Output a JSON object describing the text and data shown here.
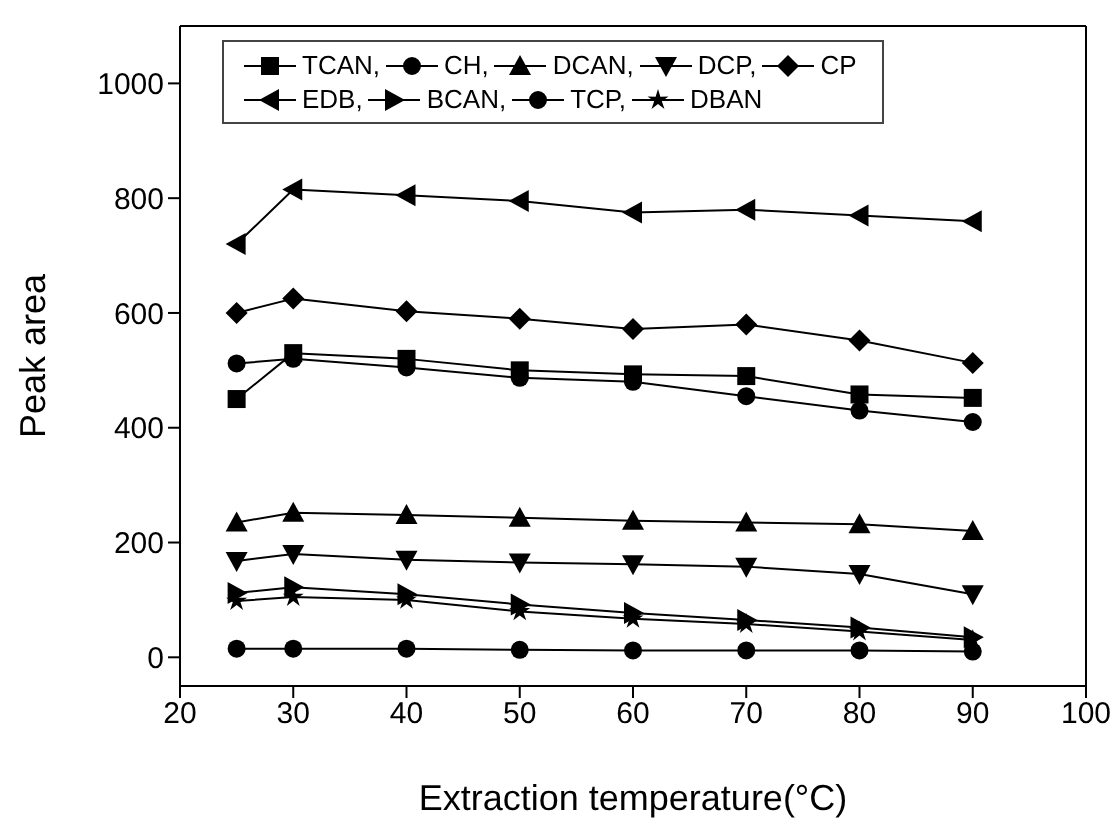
{
  "chart_data": {
    "type": "line",
    "xlabel": "Extraction temperature(°C)",
    "ylabel": "Peak area",
    "x": [
      25,
      30,
      40,
      50,
      60,
      70,
      80,
      90
    ],
    "xlim": [
      20,
      100
    ],
    "xticks": [
      20,
      30,
      40,
      50,
      60,
      70,
      80,
      90,
      100
    ],
    "ylim": [
      -50,
      1100
    ],
    "yticks": [
      0,
      200,
      400,
      600,
      800,
      1000
    ],
    "legend": "top",
    "line_style": "solid",
    "series": [
      {
        "name": "TCAN,",
        "color": "#000000",
        "marker": "square",
        "values": [
          450,
          530,
          520,
          500,
          493,
          490,
          458,
          452
        ]
      },
      {
        "name": "CH,",
        "color": "#000000",
        "marker": "circle",
        "values": [
          15,
          15,
          15,
          13,
          12,
          12,
          12,
          10
        ]
      },
      {
        "name": "DCAN,",
        "color": "#000000",
        "marker": "triangle",
        "values": [
          235,
          252,
          248,
          243,
          238,
          235,
          232,
          220
        ]
      },
      {
        "name": "DCP,",
        "color": "#000000",
        "marker": "triangle-down",
        "values": [
          168,
          180,
          170,
          165,
          162,
          158,
          145,
          110
        ]
      },
      {
        "name": "CP",
        "color": "#000000",
        "marker": "diamond",
        "values": [
          600,
          625,
          603,
          590,
          572,
          580,
          552,
          513
        ]
      },
      {
        "name": "EDB,",
        "color": "#000000",
        "marker": "triangle-left",
        "values": [
          720,
          815,
          805,
          795,
          775,
          780,
          770,
          760
        ]
      },
      {
        "name": "BCAN,",
        "color": "#000000",
        "marker": "triangle-right",
        "values": [
          112,
          122,
          110,
          92,
          77,
          65,
          52,
          35
        ]
      },
      {
        "name": "TCP,",
        "color": "#000000",
        "marker": "circle",
        "values": [
          512,
          520,
          505,
          487,
          480,
          455,
          430,
          410
        ]
      },
      {
        "name": "DBAN",
        "color": "#000000",
        "marker": "star",
        "values": [
          98,
          105,
          100,
          80,
          67,
          58,
          45,
          30
        ]
      }
    ]
  }
}
